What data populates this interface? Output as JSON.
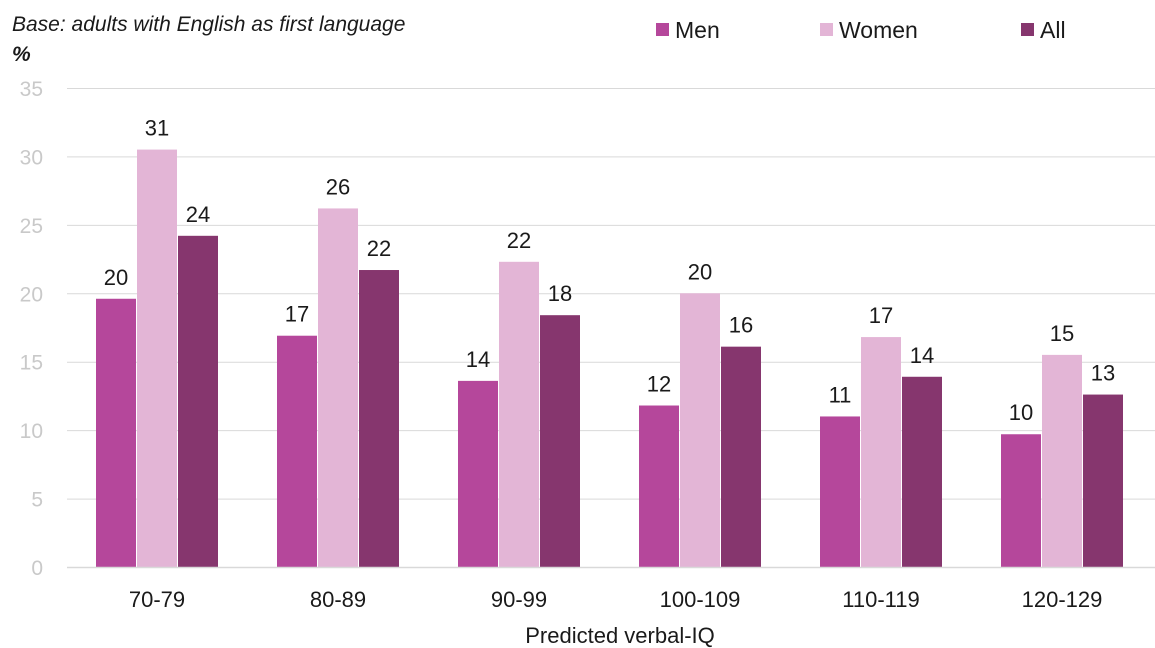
{
  "chart_data": {
    "type": "bar",
    "base_note": "Base: adults with English as first language",
    "unit_label": "%",
    "xlabel": "Predicted verbal-IQ",
    "ylabel": "",
    "ylim": [
      0,
      35
    ],
    "yticks": [
      0,
      5,
      10,
      15,
      20,
      25,
      30,
      35
    ],
    "grid": true,
    "legend_position": "top-right",
    "categories": [
      "70-79",
      "80-89",
      "90-99",
      "100-109",
      "110-119",
      "120-129"
    ],
    "series": [
      {
        "name": "Men",
        "color": "#b5479b",
        "values": [
          19.6,
          16.9,
          13.6,
          11.8,
          11.0,
          9.7
        ],
        "labels": [
          "20",
          "17",
          "14",
          "12",
          "11",
          "10"
        ]
      },
      {
        "name": "Women",
        "color": "#e3b5d6",
        "values": [
          30.5,
          26.2,
          22.3,
          20.0,
          16.8,
          15.5
        ],
        "labels": [
          "31",
          "26",
          "22",
          "20",
          "17",
          "15"
        ]
      },
      {
        "name": "All",
        "color": "#86366e",
        "values": [
          24.2,
          21.7,
          18.4,
          16.1,
          13.9,
          12.6
        ],
        "labels": [
          "24",
          "22",
          "18",
          "16",
          "14",
          "13"
        ]
      }
    ]
  }
}
